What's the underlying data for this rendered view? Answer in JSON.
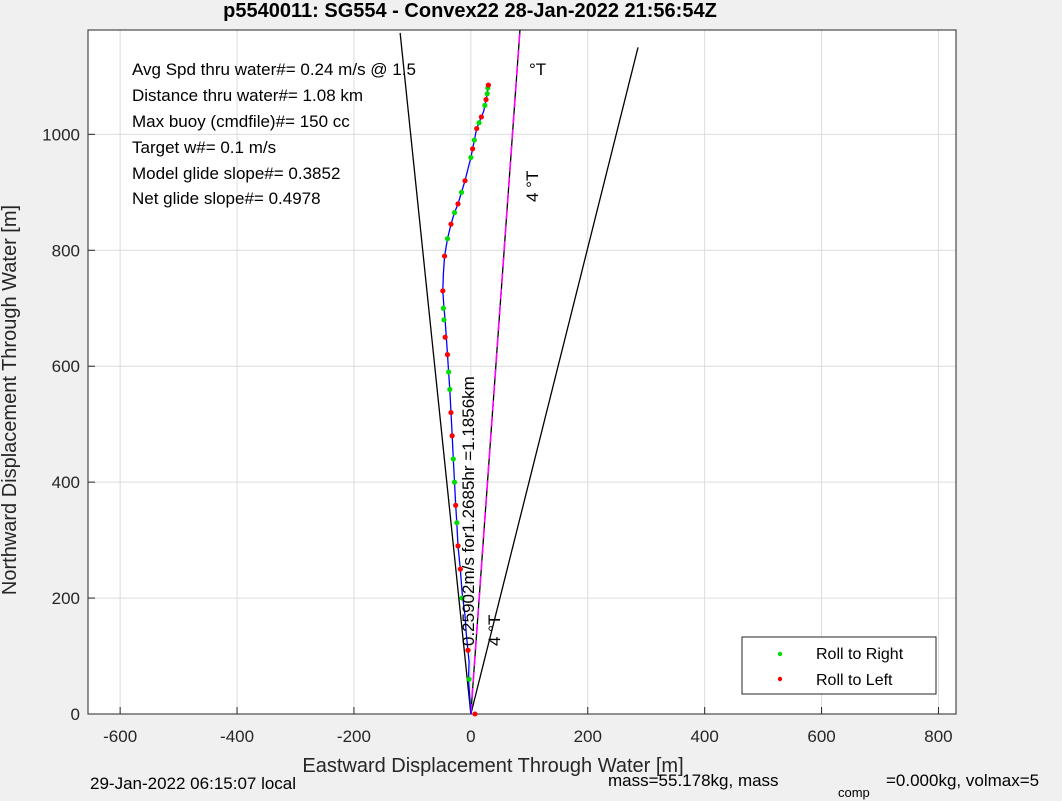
{
  "chart_data": {
    "type": "line",
    "title": "p5540011: SG554 - Convex22 28-Jan-2022 21:56:54Z",
    "xlabel": "Eastward Displacement Through Water [m]",
    "ylabel": "Northward Displacement Through Water [m]",
    "xlim": [
      -655,
      830
    ],
    "ylim": [
      0,
      1180
    ],
    "xticks": [
      "-600",
      "-400",
      "-200",
      "0",
      "200",
      "400",
      "600",
      "800"
    ],
    "xtick_values": [
      -600,
      -400,
      -200,
      0,
      200,
      400,
      600,
      800
    ],
    "yticks": [
      "0",
      "200",
      "400",
      "600",
      "800",
      "1000"
    ],
    "ytick_values": [
      0,
      200,
      400,
      600,
      800,
      1000
    ],
    "grid": true,
    "legend_position": "bottom-right",
    "stats": [
      "Avg Spd thru water#=  0.24 m/s @   1.5",
      "Distance thru water#=  1.08 km",
      "Max buoy (cmdfile)#= 150 cc",
      "Target w#= 0.1 m/s",
      "Model glide slope#= 0.3852",
      "Net glide slope#= 0.4978"
    ],
    "stat_unit": "°T",
    "annotations": {
      "heading_label_1": "4 °T",
      "heading_label_2": "4 °T",
      "speed_label": "0.25902m/s for1.2685hr =1.1856km"
    },
    "series": [
      {
        "name": "track",
        "color": "#0000ff",
        "x": [
          0,
          -2,
          -4,
          -3,
          -5,
          -8,
          -10,
          -15,
          -18,
          -22,
          -24,
          -26,
          -28,
          -30,
          -32,
          -34,
          -36,
          -38,
          -40,
          -42,
          -44,
          -46,
          -48,
          -47,
          -45,
          -40,
          -34,
          -28,
          -22,
          -16,
          -10,
          -5,
          0,
          3,
          6,
          8,
          10,
          14,
          18,
          22,
          24,
          26,
          28,
          29,
          30
        ],
        "y": [
          0,
          30,
          60,
          90,
          110,
          140,
          170,
          210,
          250,
          290,
          330,
          360,
          400,
          440,
          480,
          520,
          560,
          590,
          620,
          650,
          680,
          700,
          730,
          760,
          790,
          820,
          845,
          865,
          880,
          900,
          920,
          940,
          960,
          975,
          990,
          1000,
          1010,
          1020,
          1030,
          1040,
          1050,
          1060,
          1070,
          1078,
          1085
        ]
      }
    ],
    "bounding_lines": [
      {
        "name": "left-bound",
        "color": "#000000",
        "x": [
          0,
          -121
        ],
        "y": [
          0,
          1175
        ]
      },
      {
        "name": "right-bound",
        "color": "#000000",
        "x": [
          0,
          286
        ],
        "y": [
          0,
          1150
        ]
      },
      {
        "name": "heading",
        "color": "#000000",
        "x": [
          0,
          84
        ],
        "y": [
          0,
          1180
        ]
      },
      {
        "name": "net-displacement",
        "color": "#ff00ff",
        "x": [
          0,
          84
        ],
        "y": [
          0,
          1180
        ]
      }
    ],
    "roll_right_points": {
      "color": "#00dd00",
      "x": [
        -3,
        -15,
        -24,
        -28,
        -30,
        -36,
        -38,
        -46,
        -47,
        -40,
        -28,
        -16,
        0,
        6,
        14,
        24,
        28,
        29
      ],
      "y": [
        60,
        200,
        330,
        400,
        440,
        560,
        590,
        680,
        700,
        820,
        865,
        900,
        960,
        990,
        1020,
        1050,
        1070,
        1080
      ]
    },
    "roll_left_points": {
      "color": "#ff0000",
      "x": [
        -5,
        -18,
        -22,
        -26,
        -32,
        -34,
        -40,
        -44,
        -48,
        -45,
        -34,
        -22,
        -10,
        3,
        10,
        18,
        26,
        30
      ],
      "y": [
        110,
        250,
        290,
        360,
        480,
        520,
        620,
        650,
        730,
        790,
        845,
        880,
        920,
        975,
        1010,
        1030,
        1060,
        1085
      ]
    },
    "legend": [
      {
        "label": "Roll to Right",
        "color": "#00dd00"
      },
      {
        "label": "Roll to Left",
        "color": "#ff0000"
      }
    ]
  },
  "footer": {
    "local_time": "29-Jan-2022 06:15:07 local",
    "mass": "mass=55.178kg, mass",
    "comp_sub": "comp",
    "comp_rest": "=0.000kg, volmax=5"
  }
}
